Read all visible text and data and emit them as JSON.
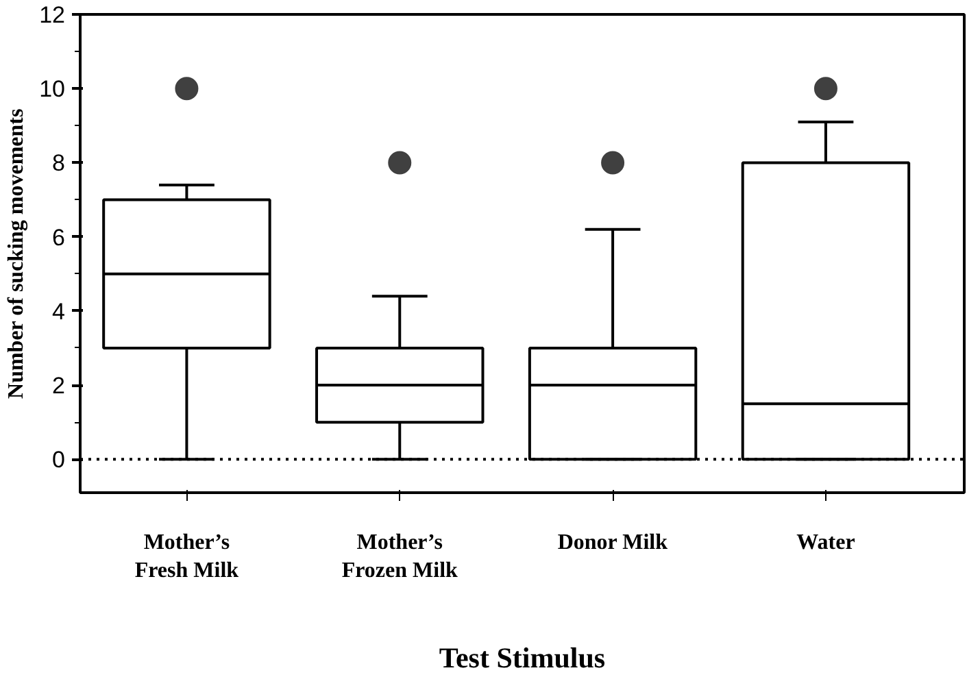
{
  "chart_data": {
    "type": "box",
    "xlabel": "Test Stimulus",
    "ylabel": "Number of sucking movements",
    "categories": [
      "Mother’s\nFresh Milk",
      "Mother’s\nFrozen Milk",
      "Donor Milk",
      "Water"
    ],
    "boxes": [
      {
        "low": 0,
        "q1": 3,
        "median": 5,
        "q3": 7,
        "high": 7.4,
        "outliers": [
          10
        ]
      },
      {
        "low": 0,
        "q1": 1,
        "median": 2,
        "q3": 3,
        "high": 4.4,
        "outliers": [
          8
        ]
      },
      {
        "low": 0,
        "q1": 0,
        "median": 2,
        "q3": 3,
        "high": 6.2,
        "outliers": [
          8
        ]
      },
      {
        "low": 0,
        "q1": 0,
        "median": 1.5,
        "q3": 8,
        "high": 9.1,
        "outliers": [
          10
        ]
      }
    ],
    "color": "#ffffff",
    "ylim": [
      -0.9,
      12
    ],
    "yticks": [
      0,
      2,
      4,
      6,
      8,
      10,
      12
    ],
    "ref_lines": [
      {
        "axis": "y",
        "value": 0,
        "line_style": "dotted"
      }
    ],
    "grid": false
  }
}
